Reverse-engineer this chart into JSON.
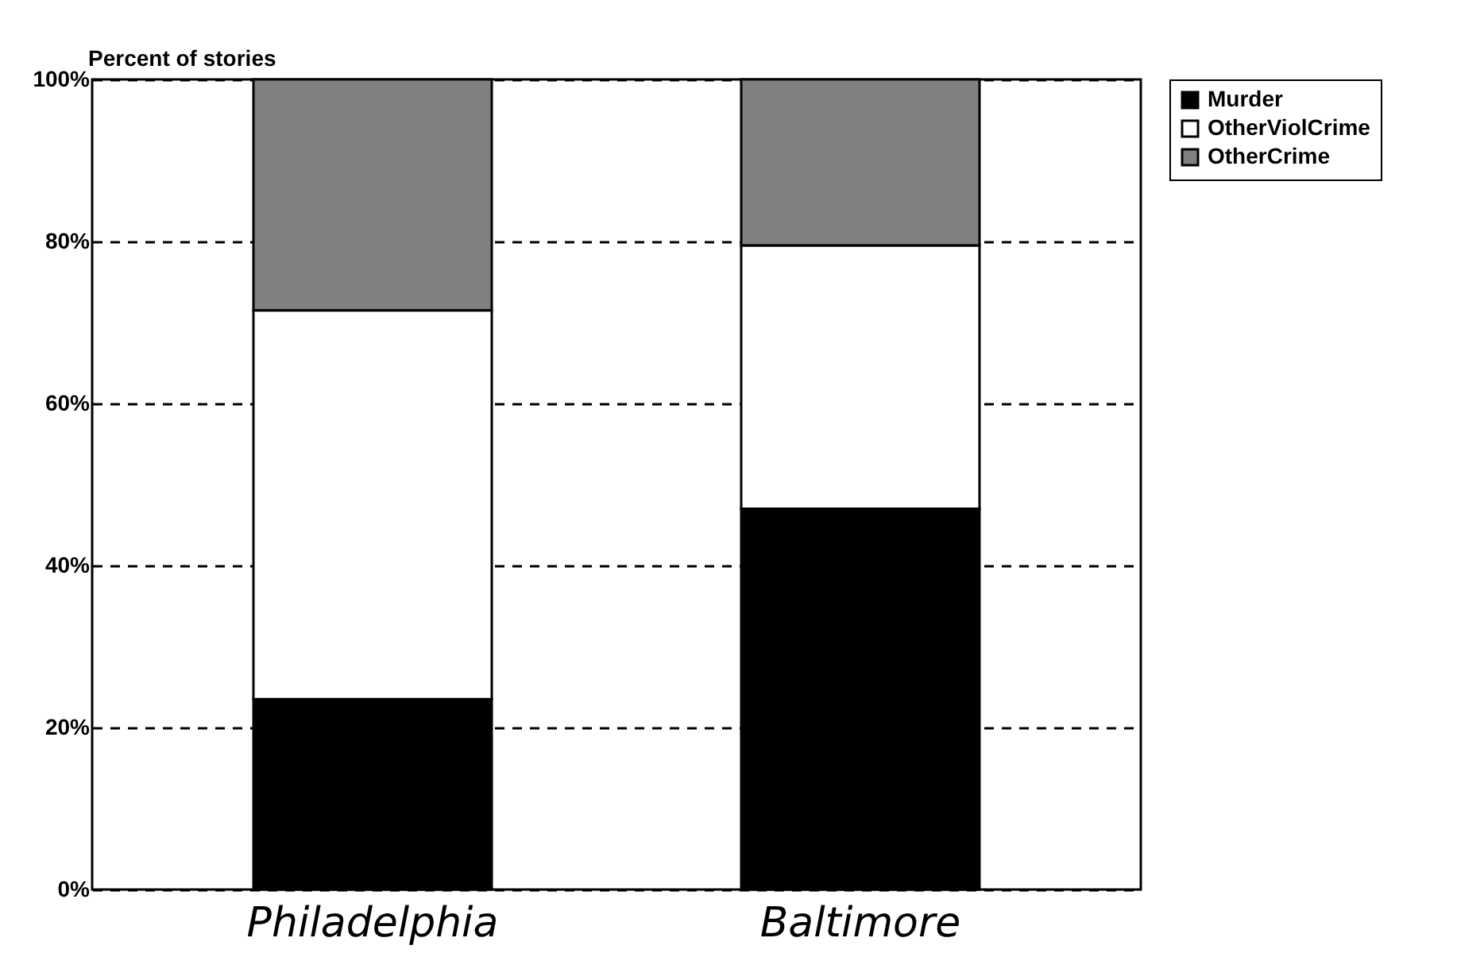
{
  "chart_data": {
    "type": "bar",
    "stacked": true,
    "ylabel": "Percent of stories",
    "categories": [
      "Philadelphia",
      "Baltimore"
    ],
    "series": [
      {
        "name": "Murder",
        "color": "#000000",
        "values": [
          23.5,
          47
        ]
      },
      {
        "name": "OtherViolCrime",
        "color": "#ffffff",
        "values": [
          48,
          32.5
        ]
      },
      {
        "name": "OtherCrime",
        "color": "#808080",
        "values": [
          28.5,
          20.5
        ]
      }
    ],
    "ylim": [
      0,
      100
    ],
    "yticks": [
      {
        "value": 0,
        "label": "0%"
      },
      {
        "value": 20,
        "label": "20%"
      },
      {
        "value": 40,
        "label": "40%"
      },
      {
        "value": 60,
        "label": "60%"
      },
      {
        "value": 80,
        "label": "80%"
      },
      {
        "value": 100,
        "label": "100%"
      }
    ],
    "grid": "y",
    "line_style": "dashed",
    "legend": "right"
  }
}
